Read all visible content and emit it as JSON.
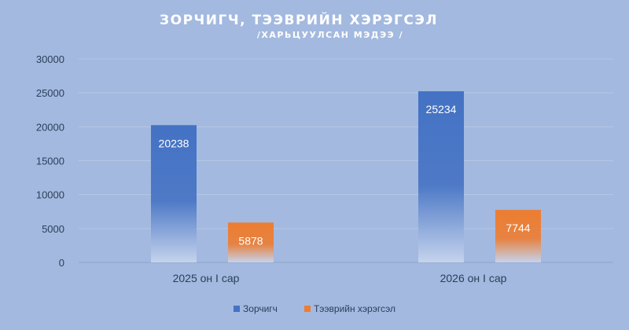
{
  "chart_data": {
    "type": "bar",
    "title": "ЗОРЧИГЧ,  ТЭЭВРИЙН ХЭРЭГСЭЛ",
    "subtitle": "/ХАРЬЦУУЛСАН МЭДЭЭ /",
    "categories": [
      "2025 он I сар",
      "2026 он I сар"
    ],
    "series": [
      {
        "name": "Зорчигч",
        "values": [
          20238,
          25234
        ],
        "color": "#4472c4"
      },
      {
        "name": "Тээврийн хэрэгсэл",
        "values": [
          5878,
          7744
        ],
        "color": "#ed7d31"
      }
    ],
    "ylim": [
      0,
      30000
    ],
    "yticks": [
      "0",
      "5000",
      "10000",
      "15000",
      "20000",
      "25000",
      "30000"
    ],
    "grid": true,
    "legend_position": "bottom",
    "background": "#a3b9df"
  }
}
